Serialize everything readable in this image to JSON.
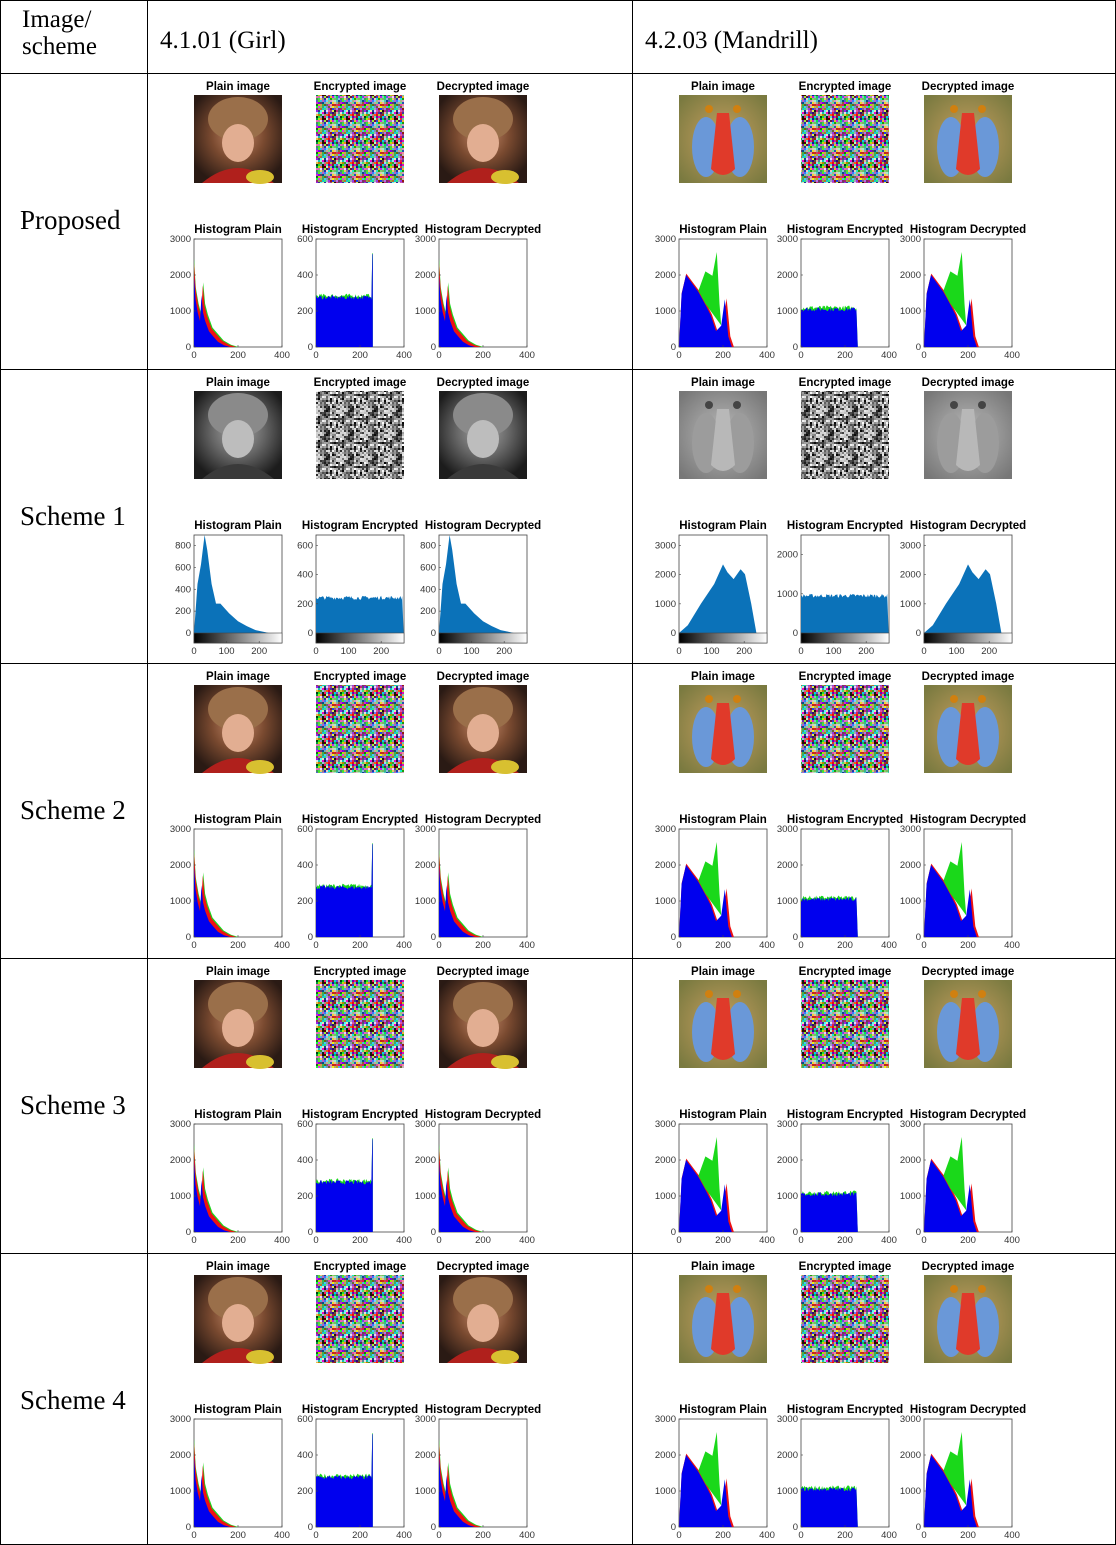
{
  "table": {
    "header": [
      "Image/ scheme",
      "4.1.01 (Girl)",
      "4.2.03 (Mandrill)"
    ],
    "rows": [
      {
        "label": "Proposed",
        "cells": [
          {
            "image_titles": [
              "Plain image",
              "Encrypted image",
              "Decrypted image"
            ],
            "histograms": [
              {
                "title": "Histogram Plain",
                "yticks": [
                  0,
                  1000,
                  2000,
                  3000
                ],
                "xticks": [
                  0,
                  200,
                  400
                ]
              },
              {
                "title": "Histogram Encrypted",
                "yticks": [
                  0,
                  200,
                  400,
                  600
                ],
                "xticks": [
                  0,
                  200,
                  400
                ]
              },
              {
                "title": "Histogram Decrypted",
                "yticks": [
                  0,
                  1000,
                  2000,
                  3000
                ],
                "xticks": [
                  0,
                  200,
                  400
                ]
              }
            ]
          },
          {
            "image_titles": [
              "Plain image",
              "Encrypted image",
              "Decrypted image"
            ],
            "histograms": [
              {
                "title": "Histogram Plain",
                "yticks": [
                  0,
                  1000,
                  2000,
                  3000
                ],
                "xticks": [
                  0,
                  200,
                  400
                ]
              },
              {
                "title": "Histogram Encrypted",
                "yticks": [
                  0,
                  1000,
                  2000,
                  3000
                ],
                "xticks": [
                  0,
                  200,
                  400
                ]
              },
              {
                "title": "Histogram Decrypted",
                "yticks": [
                  0,
                  1000,
                  2000,
                  3000
                ],
                "xticks": [
                  0,
                  200,
                  400
                ]
              }
            ]
          }
        ]
      },
      {
        "label": "Scheme 1",
        "cells": [
          {
            "image_titles": [
              "Plain image",
              "Encrypted image",
              "Decrypted image"
            ],
            "histograms": [
              {
                "title": "Histogram Plain",
                "yticks": [
                  0,
                  200,
                  400,
                  600,
                  800
                ],
                "xticks": [
                  0,
                  100,
                  200
                ]
              },
              {
                "title": "Histogram Encrypted",
                "yticks": [
                  0,
                  200,
                  400,
                  600
                ],
                "xticks": [
                  0,
                  100,
                  200
                ]
              },
              {
                "title": "Histogram Decrypted",
                "yticks": [
                  0,
                  200,
                  400,
                  600,
                  800
                ],
                "xticks": [
                  0,
                  100,
                  200
                ]
              }
            ]
          },
          {
            "image_titles": [
              "Plain image",
              "Encrypted image",
              "Decrypted image"
            ],
            "histograms": [
              {
                "title": "Histogram Plain",
                "yticks": [
                  0,
                  1000,
                  2000,
                  3000
                ],
                "xticks": [
                  0,
                  100,
                  200
                ]
              },
              {
                "title": "Histogram Encrypted",
                "yticks": [
                  0,
                  1000,
                  2000
                ],
                "xticks": [
                  0,
                  100,
                  200
                ]
              },
              {
                "title": "Histogram Decrypted",
                "yticks": [
                  0,
                  1000,
                  2000,
                  3000
                ],
                "xticks": [
                  0,
                  100,
                  200
                ]
              }
            ]
          }
        ]
      },
      {
        "label": "Scheme 2",
        "cells": [
          {
            "image_titles": [
              "Plain image",
              "Encrypted image",
              "Decrypted image"
            ],
            "histograms": [
              {
                "title": "Histogram Plain",
                "yticks": [
                  0,
                  1000,
                  2000,
                  3000
                ],
                "xticks": [
                  0,
                  200,
                  400
                ]
              },
              {
                "title": "Histogram Encrypted",
                "yticks": [
                  0,
                  200,
                  400,
                  600
                ],
                "xticks": [
                  0,
                  200,
                  400
                ]
              },
              {
                "title": "Histogram Decrypted",
                "yticks": [
                  0,
                  1000,
                  2000,
                  3000
                ],
                "xticks": [
                  0,
                  200,
                  400
                ]
              }
            ]
          },
          {
            "image_titles": [
              "Plain image",
              "Encrypted image",
              "Decrypted image"
            ],
            "histograms": [
              {
                "title": "Histogram Plain",
                "yticks": [
                  0,
                  1000,
                  2000,
                  3000
                ],
                "xticks": [
                  0,
                  200,
                  400
                ]
              },
              {
                "title": "Histogram Encrypted",
                "yticks": [
                  0,
                  1000,
                  2000,
                  3000
                ],
                "xticks": [
                  0,
                  200,
                  400
                ]
              },
              {
                "title": "Histogram Decrypted",
                "yticks": [
                  0,
                  1000,
                  2000,
                  3000
                ],
                "xticks": [
                  0,
                  200,
                  400
                ]
              }
            ]
          }
        ]
      },
      {
        "label": "Scheme 3",
        "cells": [
          {
            "image_titles": [
              "Plain image",
              "Encrypted image",
              "Decrypted image"
            ],
            "histograms": [
              {
                "title": "Histogram Plain",
                "yticks": [
                  0,
                  1000,
                  2000,
                  3000
                ],
                "xticks": [
                  0,
                  200,
                  400
                ]
              },
              {
                "title": "Histogram Encrypted",
                "yticks": [
                  0,
                  200,
                  400,
                  600
                ],
                "xticks": [
                  0,
                  200,
                  400
                ]
              },
              {
                "title": "Histogram Decrypted",
                "yticks": [
                  0,
                  1000,
                  2000,
                  3000
                ],
                "xticks": [
                  0,
                  200,
                  400
                ]
              }
            ]
          },
          {
            "image_titles": [
              "Plain image",
              "Encrypted image",
              "Decrypted image"
            ],
            "histograms": [
              {
                "title": "Histogram Plain",
                "yticks": [
                  0,
                  1000,
                  2000,
                  3000
                ],
                "xticks": [
                  0,
                  200,
                  400
                ]
              },
              {
                "title": "Histogram Encrypted",
                "yticks": [
                  0,
                  1000,
                  2000,
                  3000
                ],
                "xticks": [
                  0,
                  200,
                  400
                ]
              },
              {
                "title": "Histogram Decrypted",
                "yticks": [
                  0,
                  1000,
                  2000,
                  3000
                ],
                "xticks": [
                  0,
                  200,
                  400
                ]
              }
            ]
          }
        ]
      },
      {
        "label": "Scheme 4",
        "cells": [
          {
            "image_titles": [
              "Plain image",
              "Encrypted image",
              "Decrypted image"
            ],
            "histograms": [
              {
                "title": "Histogram Plain",
                "yticks": [
                  0,
                  1000,
                  2000,
                  3000
                ],
                "xticks": [
                  0,
                  200,
                  400
                ]
              },
              {
                "title": "Histogram Encrypted",
                "yticks": [
                  0,
                  200,
                  400,
                  600
                ],
                "xticks": [
                  0,
                  200,
                  400
                ]
              },
              {
                "title": "Histogram Decrypted",
                "yticks": [
                  0,
                  1000,
                  2000,
                  3000
                ],
                "xticks": [
                  0,
                  200,
                  400
                ]
              }
            ]
          },
          {
            "image_titles": [
              "Plain image",
              "Encrypted image",
              "Decrypted image"
            ],
            "histograms": [
              {
                "title": "Histogram Plain",
                "yticks": [
                  0,
                  1000,
                  2000,
                  3000
                ],
                "xticks": [
                  0,
                  200,
                  400
                ]
              },
              {
                "title": "Histogram Encrypted",
                "yticks": [
                  0,
                  1000,
                  2000,
                  3000
                ],
                "xticks": [
                  0,
                  200,
                  400
                ]
              },
              {
                "title": "Histogram Decrypted",
                "yticks": [
                  0,
                  1000,
                  2000,
                  3000
                ],
                "xticks": [
                  0,
                  200,
                  400
                ]
              }
            ]
          }
        ]
      }
    ]
  }
}
